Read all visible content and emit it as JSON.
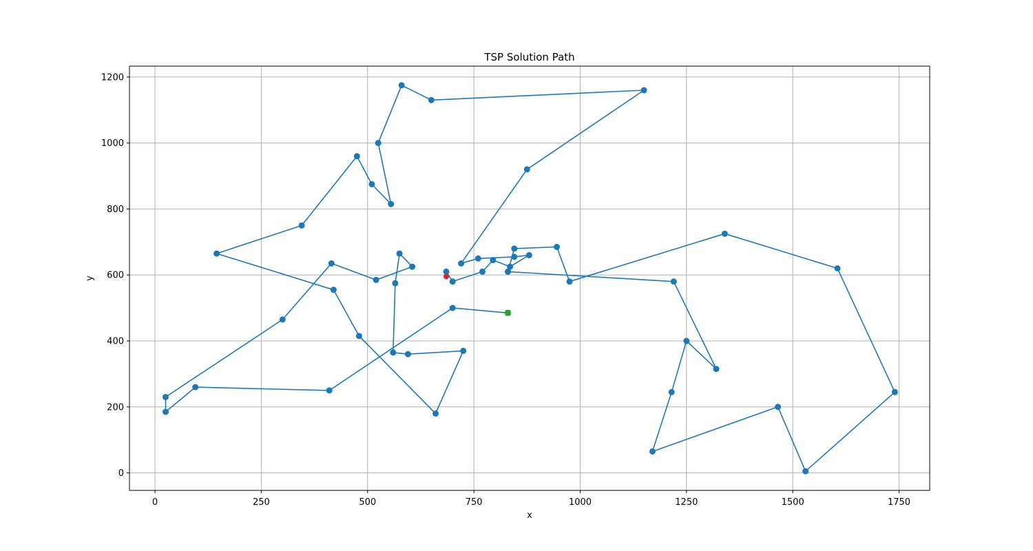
{
  "chart_data": {
    "type": "line",
    "title": "TSP Solution Path",
    "xlabel": "x",
    "ylabel": "y",
    "xlim": [
      -60,
      1822
    ],
    "ylim": [
      -53,
      1233
    ],
    "xticks": [
      0,
      250,
      500,
      750,
      1000,
      1250,
      1500,
      1750
    ],
    "yticks": [
      0,
      200,
      400,
      600,
      800,
      1000,
      1200
    ],
    "grid": true,
    "colors": {
      "path": "#1f77b4",
      "start_marker": "#d62728",
      "end_marker": "#2ca02c",
      "grid": "#b0b0b0"
    },
    "path": {
      "x": [
        685,
        700,
        770,
        795,
        835,
        880,
        845,
        760,
        720,
        875,
        1150,
        650,
        580,
        525,
        555,
        510,
        475,
        345,
        145,
        420,
        480,
        660,
        725,
        595,
        560,
        565,
        575,
        605,
        520,
        415,
        300,
        25,
        25,
        95,
        410,
        700,
        830
      ],
      "y": [
        610,
        580,
        610,
        645,
        625,
        660,
        655,
        650,
        635,
        920,
        1160,
        1130,
        1175,
        1000,
        815,
        875,
        960,
        750,
        665,
        555,
        415,
        180,
        370,
        360,
        365,
        575,
        665,
        625,
        585,
        635,
        465,
        230,
        185,
        260,
        250,
        500,
        485
      ]
    },
    "path2": {
      "x": [
        830,
        845,
        945,
        975,
        1340,
        1605,
        1740,
        1530,
        1465,
        1170,
        1215,
        1250,
        1320,
        1220,
        830
      ],
      "y": [
        610,
        680,
        685,
        580,
        725,
        620,
        245,
        5,
        200,
        65,
        245,
        400,
        315,
        580,
        610
      ]
    },
    "start_point": {
      "x": 685,
      "y": 595
    },
    "end_point": {
      "x": 830,
      "y": 485
    }
  }
}
